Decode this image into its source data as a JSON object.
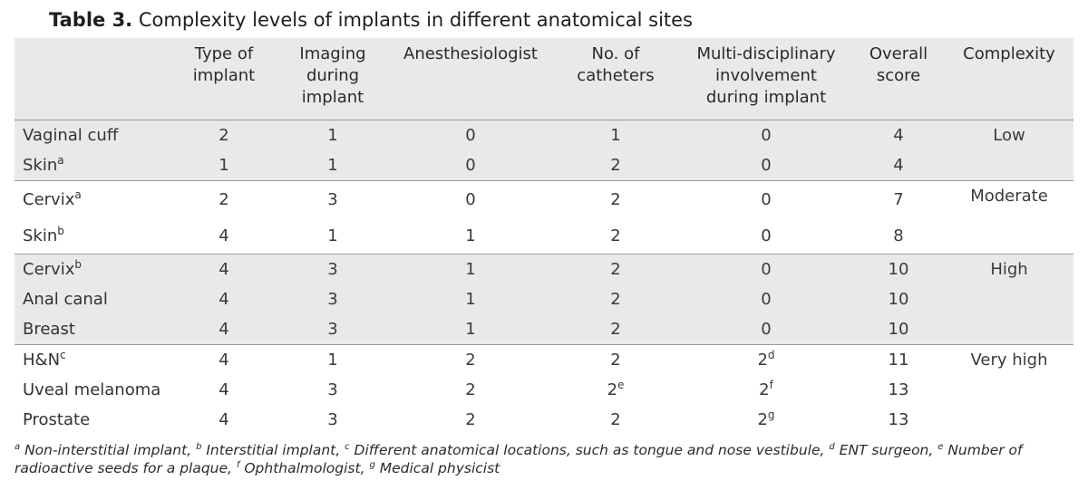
{
  "title": {
    "label": "Table 3.",
    "text": "Complexity levels of implants in different anatomical sites"
  },
  "headers": {
    "type_line1": "Type of",
    "type_line2": "implant",
    "imaging_line1": "Imaging",
    "imaging_line2": "during",
    "imaging_line3": "implant",
    "anesthesiologist": "Anesthesiologist",
    "catheters_line1": "No. of",
    "catheters_line2": "catheters",
    "multi_line1": "Multi-disciplinary",
    "multi_line2": "involvement",
    "multi_line3": "during implant",
    "score_line1": "Overall",
    "score_line2": "score",
    "complexity": "Complexity"
  },
  "rows": [
    {
      "site": "Vaginal cuff",
      "site_sup": "",
      "type": "2",
      "imaging": "1",
      "anest": "0",
      "catheters": "1",
      "catheters_sup": "",
      "multi": "0",
      "multi_sup": "",
      "score": "4"
    },
    {
      "site": "Skin",
      "site_sup": "a",
      "type": "1",
      "imaging": "1",
      "anest": "0",
      "catheters": "2",
      "catheters_sup": "",
      "multi": "0",
      "multi_sup": "",
      "score": "4"
    },
    {
      "site": "Cervix",
      "site_sup": "a",
      "type": "2",
      "imaging": "3",
      "anest": "0",
      "catheters": "2",
      "catheters_sup": "",
      "multi": "0",
      "multi_sup": "",
      "score": "7"
    },
    {
      "site": "Skin",
      "site_sup": "b",
      "type": "4",
      "imaging": "1",
      "anest": "1",
      "catheters": "2",
      "catheters_sup": "",
      "multi": "0",
      "multi_sup": "",
      "score": "8"
    },
    {
      "site": "Cervix",
      "site_sup": "b",
      "type": "4",
      "imaging": "3",
      "anest": "1",
      "catheters": "2",
      "catheters_sup": "",
      "multi": "0",
      "multi_sup": "",
      "score": "10"
    },
    {
      "site": "Anal canal",
      "site_sup": "",
      "type": "4",
      "imaging": "3",
      "anest": "1",
      "catheters": "2",
      "catheters_sup": "",
      "multi": "0",
      "multi_sup": "",
      "score": "10"
    },
    {
      "site": "Breast",
      "site_sup": "",
      "type": "4",
      "imaging": "3",
      "anest": "1",
      "catheters": "2",
      "catheters_sup": "",
      "multi": "0",
      "multi_sup": "",
      "score": "10"
    },
    {
      "site": "H&N",
      "site_sup": "c",
      "type": "4",
      "imaging": "1",
      "anest": "2",
      "catheters": "2",
      "catheters_sup": "",
      "multi": "2",
      "multi_sup": "d",
      "score": "11"
    },
    {
      "site": "Uveal melanoma",
      "site_sup": "",
      "type": "4",
      "imaging": "3",
      "anest": "2",
      "catheters": "2",
      "catheters_sup": "e",
      "multi": "2",
      "multi_sup": "f",
      "score": "13"
    },
    {
      "site": "Prostate",
      "site_sup": "",
      "type": "4",
      "imaging": "3",
      "anest": "2",
      "catheters": "2",
      "catheters_sup": "",
      "multi": "2",
      "multi_sup": "g",
      "score": "13"
    }
  ],
  "complexity": [
    "Low",
    "Moderate",
    "High",
    "Very high"
  ],
  "footnotes": [
    {
      "mark": "a",
      "text": " Non-interstitial implant, "
    },
    {
      "mark": "b",
      "text": " Interstitial implant, "
    },
    {
      "mark": "c",
      "text": " Different anatomical locations, such as tongue and nose vestibule, "
    },
    {
      "mark": "d",
      "text": " ENT surgeon, "
    },
    {
      "mark": "e",
      "text": " Number of radioactive seeds for a plaque, "
    },
    {
      "mark": "f",
      "text": " Ophthalmologist, "
    },
    {
      "mark": "g",
      "text": " Medical physicist"
    }
  ]
}
